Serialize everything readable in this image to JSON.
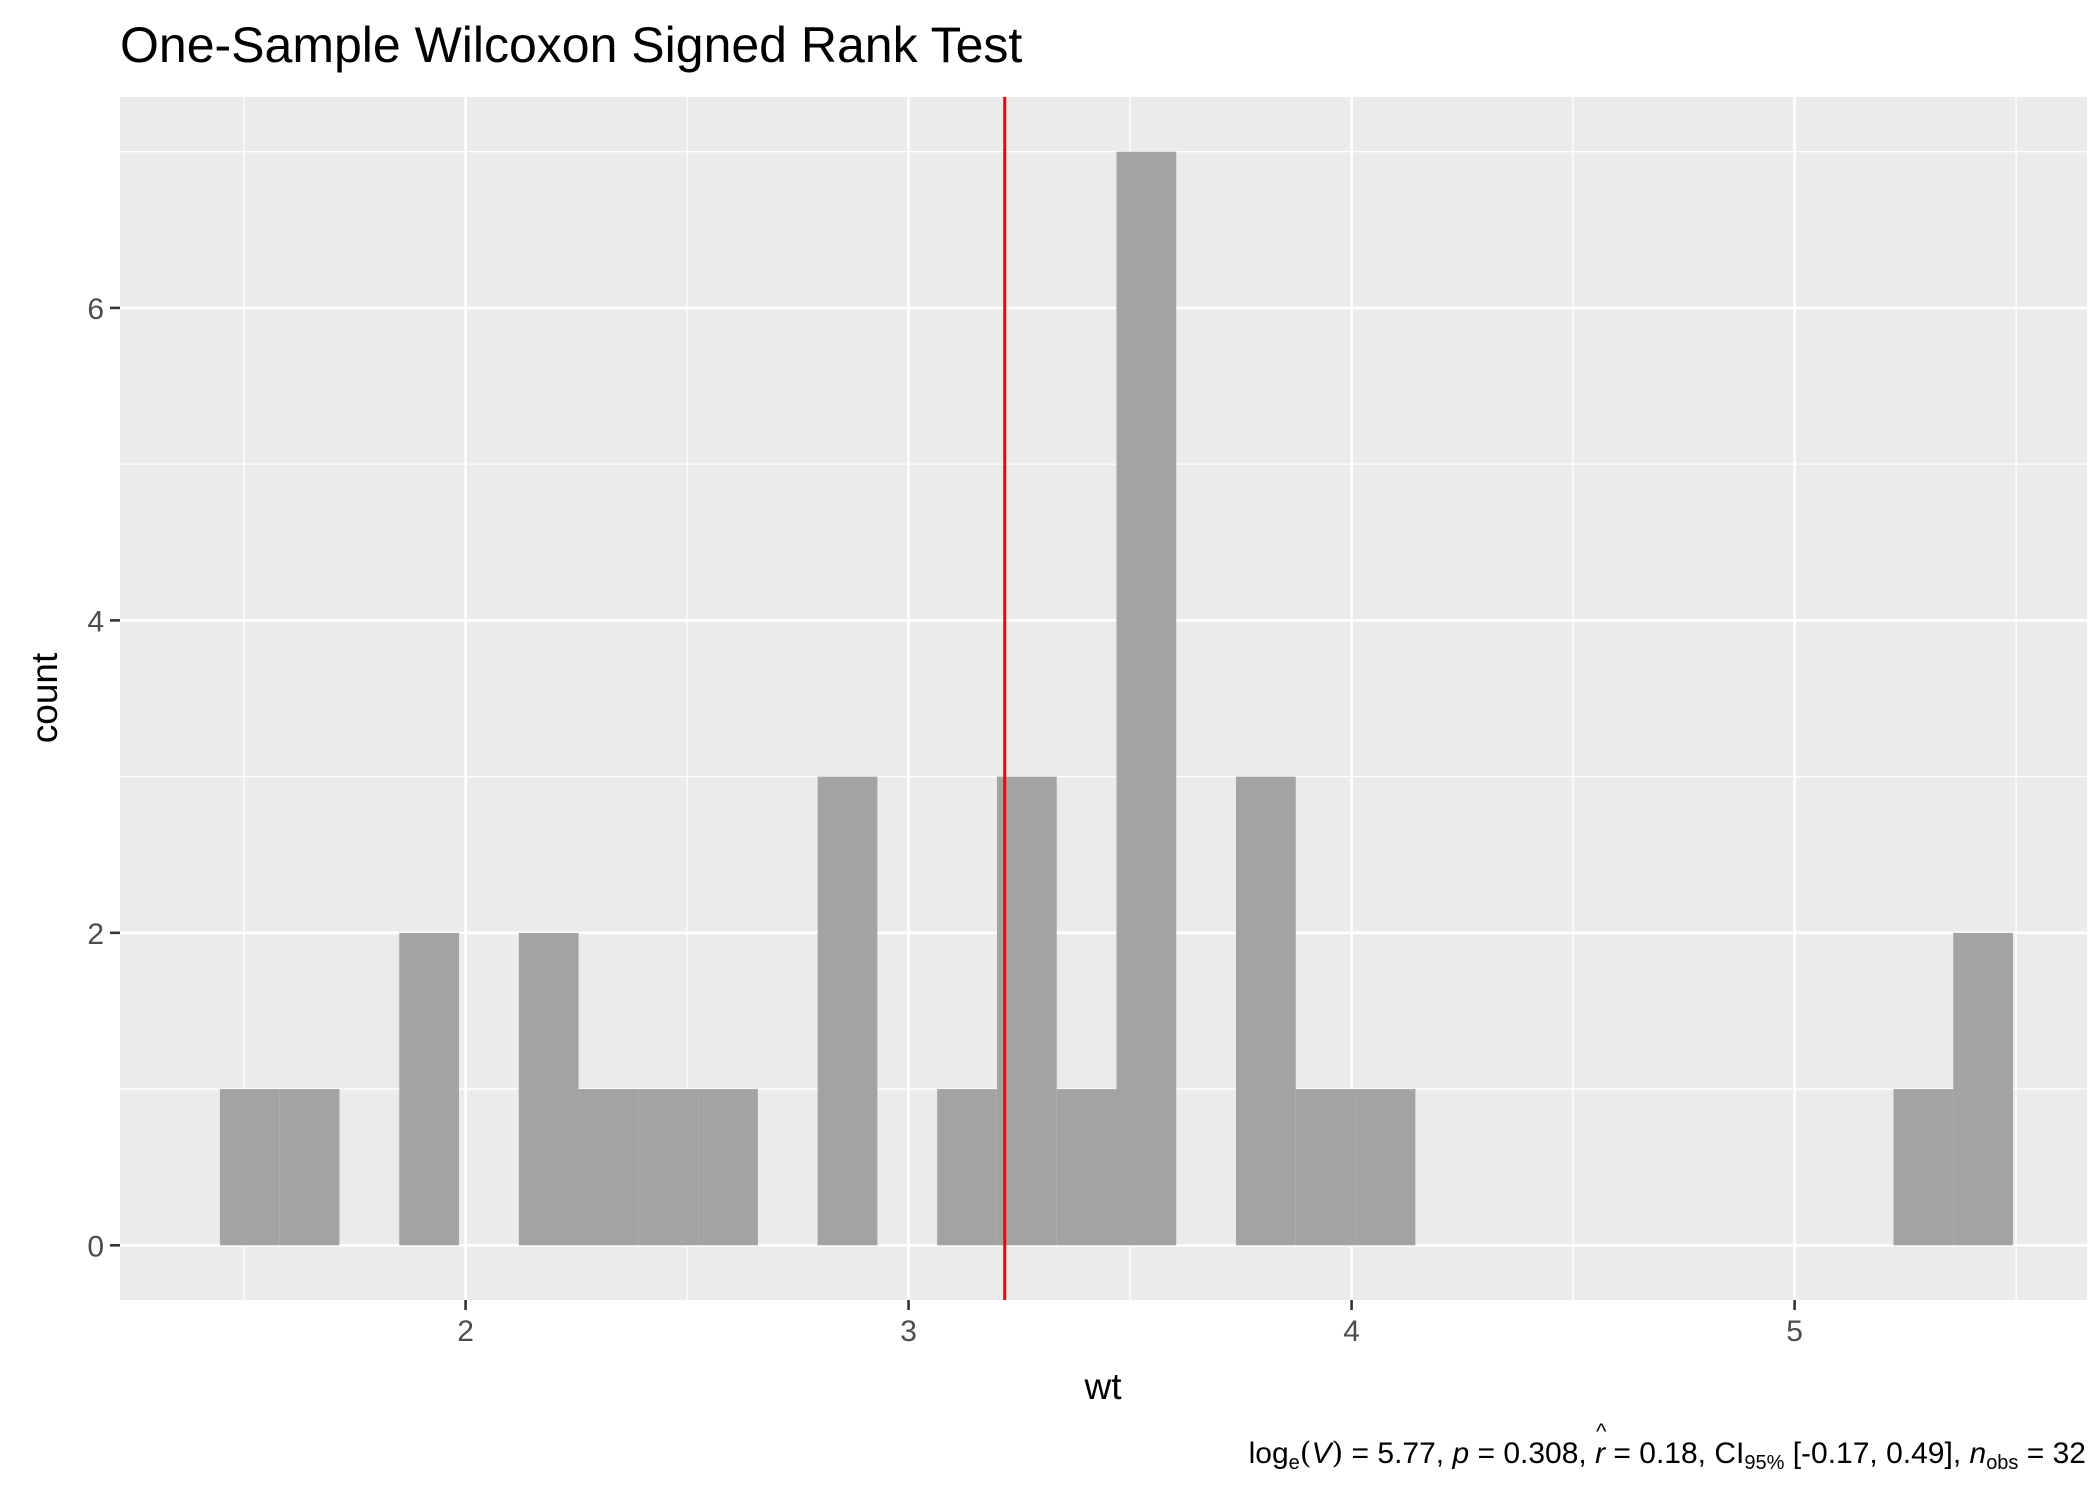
{
  "chart_data": {
    "type": "bar",
    "title": "One-Sample Wilcoxon Signed Rank Test",
    "xlabel": "wt",
    "ylabel": "count",
    "xlim": [
      1.22,
      5.66
    ],
    "ylim": [
      -0.35,
      7.35
    ],
    "x_ticks": [
      2,
      3,
      4,
      5
    ],
    "x_tick_labels": [
      "2",
      "3",
      "4",
      "5"
    ],
    "y_ticks": [
      0,
      2,
      4,
      6
    ],
    "y_tick_labels": [
      "0",
      "2",
      "4",
      "6"
    ],
    "x_minor_grid": [
      1.5,
      2.5,
      3.5,
      4.5,
      5.5
    ],
    "y_minor_grid": [
      1,
      3,
      5,
      7
    ],
    "bin_width": 0.1349,
    "bins": [
      {
        "center": 1.513,
        "count": 1
      },
      {
        "center": 1.6479,
        "count": 1
      },
      {
        "center": 1.9178,
        "count": 2
      },
      {
        "center": 2.1876,
        "count": 2
      },
      {
        "center": 2.3225,
        "count": 1
      },
      {
        "center": 2.4574,
        "count": 1
      },
      {
        "center": 2.5924,
        "count": 1
      },
      {
        "center": 2.8622,
        "count": 3
      },
      {
        "center": 3.132,
        "count": 1
      },
      {
        "center": 3.267,
        "count": 3
      },
      {
        "center": 3.4019,
        "count": 1
      },
      {
        "center": 3.5368,
        "count": 7
      },
      {
        "center": 3.8066,
        "count": 3
      },
      {
        "center": 3.9416,
        "count": 1
      },
      {
        "center": 4.0765,
        "count": 1
      },
      {
        "center": 5.2907,
        "count": 1
      },
      {
        "center": 5.4256,
        "count": 2
      }
    ],
    "reference_line": {
      "x": 3.217,
      "color": "#ff0000"
    },
    "bar_color": "#a3a3a3",
    "panel_color": "#ebebeb",
    "grid_color": "#ffffff",
    "grid": true,
    "legend": "none"
  },
  "caption": {
    "log_prefix": "log",
    "log_sub": "e",
    "stat_var": "V",
    "stat_val": " = 5.77, ",
    "p_label": "p",
    "p_val": " = 0.308, ",
    "r_label": "r",
    "r_val": " = 0.18, ",
    "ci_label": "CI",
    "ci_sub": "95%",
    "ci_val": " [-0.17, 0.49], ",
    "n_label": "n",
    "n_sub": "obs",
    "n_val": " = 32"
  }
}
